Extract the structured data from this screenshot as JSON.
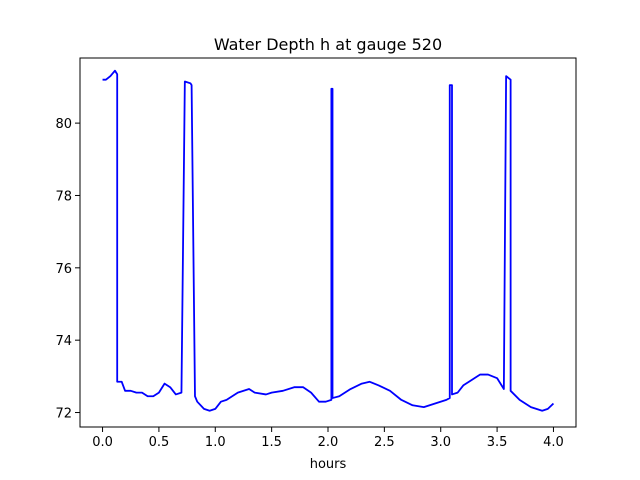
{
  "chart_data": {
    "type": "line",
    "title": "Water Depth h at gauge 520",
    "xlabel": "hours",
    "ylabel": "",
    "xlim": [
      -0.2,
      4.2
    ],
    "ylim": [
      71.6,
      81.8
    ],
    "xticks": [
      0.0,
      0.5,
      1.0,
      1.5,
      2.0,
      2.5,
      3.0,
      3.5,
      4.0
    ],
    "xtick_labels": [
      "0.0",
      "0.5",
      "1.0",
      "1.5",
      "2.0",
      "2.5",
      "3.0",
      "3.5",
      "4.0"
    ],
    "yticks": [
      72,
      74,
      76,
      78,
      80
    ],
    "ytick_labels": [
      "72",
      "74",
      "76",
      "78",
      "80"
    ],
    "grid": false,
    "series": [
      {
        "color": "#0000ff",
        "x": [
          0.0,
          0.03,
          0.07,
          0.11,
          0.13,
          0.13,
          0.17,
          0.2,
          0.25,
          0.3,
          0.35,
          0.4,
          0.45,
          0.5,
          0.55,
          0.6,
          0.65,
          0.7,
          0.73,
          0.78,
          0.79,
          0.82,
          0.84,
          0.84,
          0.9,
          0.95,
          1.0,
          1.05,
          1.1,
          1.2,
          1.3,
          1.35,
          1.45,
          1.5,
          1.6,
          1.7,
          1.78,
          1.85,
          1.92,
          1.98,
          2.03,
          2.03,
          2.04,
          2.04,
          2.1,
          2.2,
          2.3,
          2.37,
          2.45,
          2.55,
          2.65,
          2.75,
          2.85,
          2.95,
          3.05,
          3.08,
          3.08,
          3.1,
          3.1,
          3.15,
          3.2,
          3.3,
          3.35,
          3.42,
          3.5,
          3.56,
          3.58,
          3.62,
          3.62,
          3.7,
          3.8,
          3.9,
          3.95,
          4.0
        ],
        "y": [
          81.2,
          81.2,
          81.3,
          81.45,
          81.35,
          72.85,
          72.85,
          72.6,
          72.6,
          72.55,
          72.55,
          72.45,
          72.45,
          72.55,
          72.8,
          72.7,
          72.5,
          72.55,
          81.15,
          81.1,
          81.05,
          72.45,
          72.3,
          72.3,
          72.1,
          72.05,
          72.1,
          72.3,
          72.35,
          72.55,
          72.65,
          72.55,
          72.5,
          72.55,
          72.6,
          72.7,
          72.7,
          72.55,
          72.3,
          72.3,
          72.35,
          80.95,
          80.95,
          72.4,
          72.45,
          72.65,
          72.8,
          72.85,
          72.75,
          72.6,
          72.35,
          72.2,
          72.15,
          72.25,
          72.35,
          72.4,
          81.05,
          81.05,
          72.5,
          72.55,
          72.75,
          72.95,
          73.05,
          73.05,
          72.95,
          72.65,
          81.3,
          81.2,
          72.6,
          72.35,
          72.15,
          72.05,
          72.1,
          72.25
        ]
      }
    ]
  }
}
